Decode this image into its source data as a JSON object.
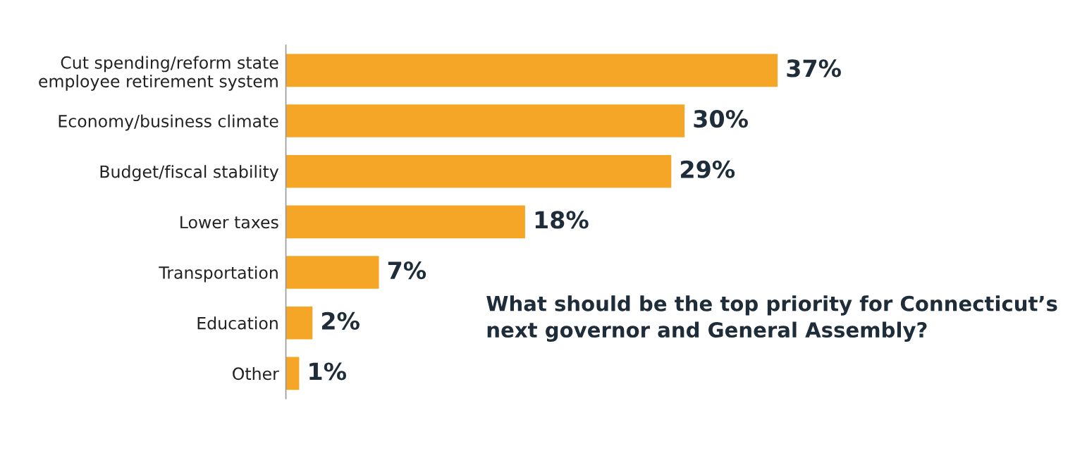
{
  "chart_data": {
    "type": "bar",
    "orientation": "horizontal",
    "title": "What should be the top priority for Connecticut’s\nnext governor and General Assembly?",
    "categories": [
      "Cut spending/reform state\nemployee retirement system",
      "Economy/business climate",
      "Budget/fiscal stability",
      "Lower taxes",
      "Transportation",
      "Education",
      "Other"
    ],
    "values": [
      37,
      30,
      29,
      18,
      7,
      2,
      1
    ],
    "value_labels": [
      "37%",
      "30%",
      "29%",
      "18%",
      "7%",
      "2%",
      "1%"
    ],
    "color": "#f5a627",
    "tick_labels": "y",
    "grid": false,
    "legend": false
  }
}
